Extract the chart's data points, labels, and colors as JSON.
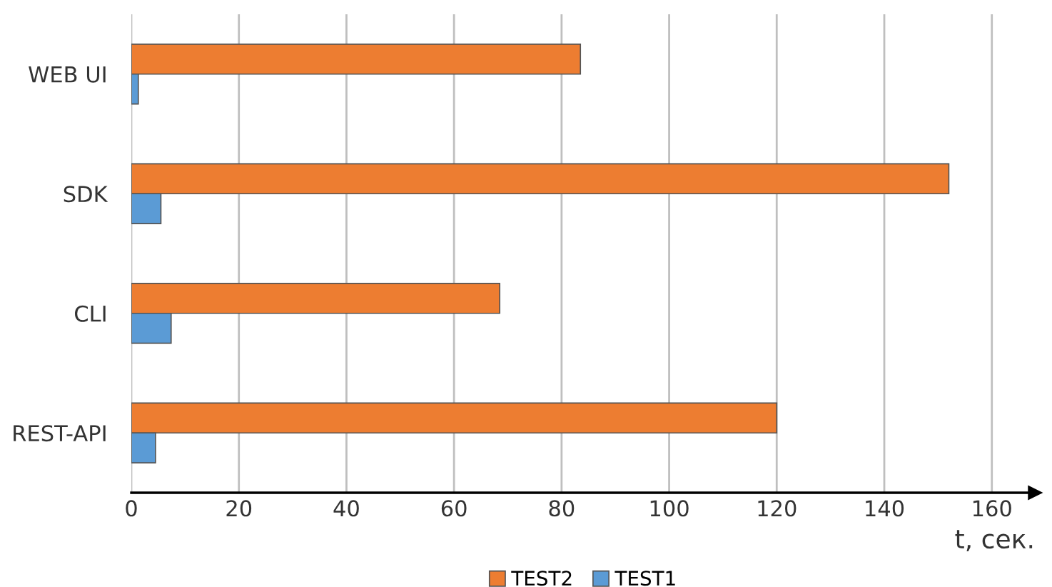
{
  "chart_data": {
    "type": "bar",
    "orientation": "horizontal",
    "xlabel": "t, сек.",
    "categories": [
      "WEB UI",
      "SDK",
      "CLI",
      "REST-API"
    ],
    "series": [
      {
        "name": "TEST2",
        "color": "#ed7d31",
        "values": [
          83.5,
          152,
          68.5,
          120
        ]
      },
      {
        "name": "TEST1",
        "color": "#5b9bd5",
        "values": [
          1.3,
          5.5,
          7.4,
          4.5
        ]
      }
    ],
    "xlim": [
      0,
      168
    ],
    "xticks": [
      0,
      20,
      40,
      60,
      80,
      100,
      120,
      140,
      160
    ],
    "grid": "x",
    "legend": "bottom"
  }
}
